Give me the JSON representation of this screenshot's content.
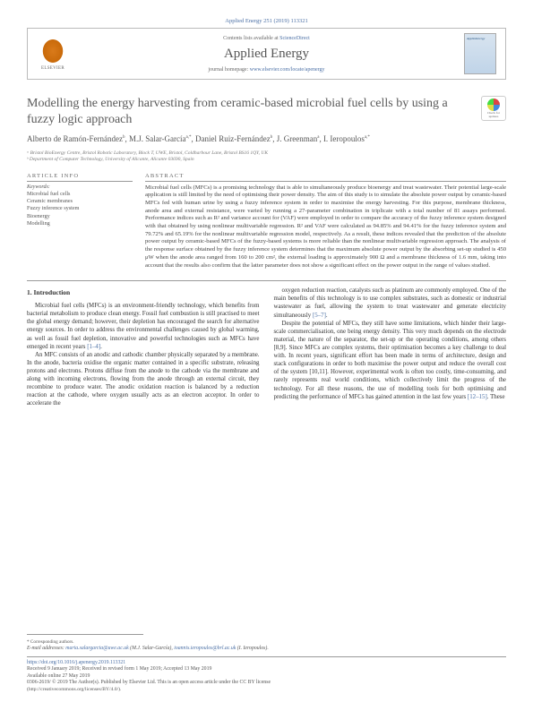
{
  "header": {
    "citation": "Applied Energy 251 (2019) 113321",
    "contents_prefix": "Contents lists available at ",
    "contents_link": "ScienceDirect",
    "journal_name": "Applied Energy",
    "homepage_prefix": "journal homepage: ",
    "homepage_url": "www.elsevier.com/locate/apenergy",
    "publisher": "ELSEVIER",
    "cover_label": "Appliedenergy"
  },
  "updates": {
    "line1": "Check for",
    "line2": "updates"
  },
  "article": {
    "title": "Modelling the energy harvesting from ceramic-based microbial fuel cells by using a fuzzy logic approach",
    "authors_html": "Alberto de Ramón-Fernández<sup>b</sup>, M.J. Salar-García<sup>a,*</sup>, Daniel Ruiz-Fernández<sup>b</sup>, J. Greenman<sup>a</sup>, I. Ieropoulos<sup>a,*</sup>",
    "affiliations": [
      "ᵃ Bristol BioEnergy Centre, Bristol Robotic Laboratory, Block T, UWE, Bristol, Coldharbour Lane, Bristol BS16 1QY, UK",
      "ᵇ Department of Computer Technology, University of Alicante, Alicante 03690, Spain"
    ]
  },
  "info": {
    "heading": "ARTICLE INFO",
    "keywords_label": "Keywords:",
    "keywords": [
      "Microbial fuel cells",
      "Ceramic membranes",
      "Fuzzy inference system",
      "Bioenergy",
      "Modelling"
    ]
  },
  "abstract": {
    "heading": "ABSTRACT",
    "text": "Microbial fuel cells (MFCs) is a promising technology that is able to simultaneously produce bioenergy and treat wastewater. Their potential large-scale application is still limited by the need of optimising their power density. The aim of this study is to simulate the absolute power output by ceramic-based MFCs fed with human urine by using a fuzzy inference system in order to maximise the energy harvesting. For this purpose, membrane thickness, anode area and external resistance, were varied by running a 27-parameter combination in triplicate with a total number of 81 assays performed. Performance indices such as R² and variance account for (VAF) were employed in order to compare the accuracy of the fuzzy inference system designed with that obtained by using nonlinear multivariable regression. R² and VAF were calculated as 94.85% and 94.41% for the fuzzy inference system and 79.72% and 65.19% for the nonlinear multivariable regression model, respectively. As a result, these indices revealed that the prediction of the absolute power output by ceramic-based MFCs of the fuzzy-based systems is more reliable than the nonlinear multivariable regression approach. The analysis of the response surface obtained by the fuzzy inference system determines that the maximum absolute power output by the absorbing set-up studied is 450 μW when the anode area ranged from 160 to 200 cm², the external loading is approximately 900 Ω and a membrane thickness of 1.6 mm, taking into account that the results also confirm that the latter parameter does not show a significant effect on the power output in the range of values studied."
  },
  "body": {
    "section_number": "1.",
    "section_title": "Introduction",
    "p1": "Microbial fuel cells (MFCs) is an environment-friendly technology, which benefits from bacterial metabolism to produce clean energy. Fossil fuel combustion is still practised to meet the global energy demand; however, their depletion has encouraged the search for alternative energy sources. In order to address the environmental challenges caused by global warming, as well as fossil fuel depletion, innovative and powerful technologies such as MFCs have emerged in recent years [1–4].",
    "p2": "An MFC consists of an anodic and cathodic chamber physically separated by a membrane. In the anode, bacteria oxidise the organic matter contained in a specific substrate, releasing protons and electrons. Protons diffuse from the anode to the cathode via the membrane and along with incoming electrons, flowing from the anode through an external circuit, they recombine to produce water. The anodic oxidation reaction is balanced by a reduction reaction at the cathode, where oxygen usually acts as an electron acceptor. In order to accelerate the",
    "p3": "oxygen reduction reaction, catalysts such as platinum are commonly employed. One of the main benefits of this technology is to use complex substrates, such as domestic or industrial wastewater as fuel, allowing the system to treat wastewater and generate electricity simultaneously [5–7].",
    "p4": "Despite the potential of MFCs, they still have some limitations, which hinder their large-scale commercialisation, one being energy density. This very much depends on the electrode material, the nature of the separator, the set-up or the operating conditions, among others [8,9]. Since MFCs are complex systems, their optimisation becomes a key challenge to deal with. In recent years, significant effort has been made in terms of architecture, design and stack configurations in order to both maximise the power output and reduce the overall cost of the system [10,11]. However, experimental work is often too costly, time-consuming, and rarely represents real world conditions, which collectively limit the progress of the technology. For all these reasons, the use of modelling tools for both optimising and predicting the performance of MFCs has gained attention in the last few years [12–15]. These"
  },
  "footer": {
    "corresponding": "* Corresponding authors.",
    "email_label": "E-mail addresses: ",
    "email1": "maria.salargarcia@uwe.ac.uk",
    "email1_name": " (M.J. Salar-García), ",
    "email2": "ioannis.ieropoulos@brl.ac.uk",
    "email2_name": " (I. Ieropoulos).",
    "doi": "https://doi.org/10.1016/j.apenergy.2019.113321",
    "dates": "Received 9 January 2019; Received in revised form 1 May 2019; Accepted 13 May 2019",
    "available": "Available online 27 May 2019",
    "copyright": "0306-2619/ © 2019 The Author(s). Published by Elsevier Ltd. This is an open access article under the CC BY license",
    "license_url": "(http://creativecommons.org/licenses/BY/4.0/)."
  },
  "colors": {
    "link": "#4a6fa5",
    "text": "#333333",
    "muted": "#666666",
    "border": "#999999"
  }
}
